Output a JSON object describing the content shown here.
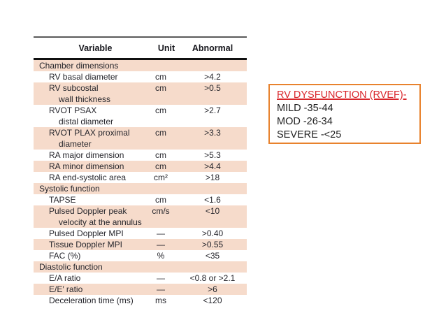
{
  "slide": {
    "background": "#ffffff"
  },
  "table": {
    "headers": [
      "Variable",
      "Unit",
      "Abnormal"
    ],
    "text_color": "#26262c",
    "stripe_color": "#f6dbcb",
    "rows": [
      {
        "label": "Chamber dimensions",
        "label2": "",
        "unit": "",
        "abnormal": "",
        "section": true,
        "shaded": true
      },
      {
        "label": "RV basal diameter",
        "label2": "",
        "unit": "cm",
        "abnormal": ">4.2",
        "section": false,
        "shaded": false
      },
      {
        "label": "RV subcostal",
        "label2": "wall thickness",
        "unit": "cm",
        "abnormal": ">0.5",
        "section": false,
        "shaded": true
      },
      {
        "label": "RVOT PSAX",
        "label2": "distal diameter",
        "unit": "cm",
        "abnormal": ">2.7",
        "section": false,
        "shaded": false
      },
      {
        "label": "RVOT PLAX proximal",
        "label2": "diameter",
        "unit": "cm",
        "abnormal": ">3.3",
        "section": false,
        "shaded": true
      },
      {
        "label": "RA major dimension",
        "label2": "",
        "unit": "cm",
        "abnormal": ">5.3",
        "section": false,
        "shaded": false
      },
      {
        "label": "RA minor dimension",
        "label2": "",
        "unit": "cm",
        "abnormal": ">4.4",
        "section": false,
        "shaded": true
      },
      {
        "label": "RA end-systolic area",
        "label2": "",
        "unit": "cm²",
        "abnormal": ">18",
        "section": false,
        "shaded": false
      },
      {
        "label": "Systolic function",
        "label2": "",
        "unit": "",
        "abnormal": "",
        "section": true,
        "shaded": true
      },
      {
        "label": "TAPSE",
        "label2": "",
        "unit": "cm",
        "abnormal": "<1.6",
        "section": false,
        "shaded": false
      },
      {
        "label": "Pulsed Doppler peak",
        "label2": "velocity at the annulus",
        "unit": "cm/s",
        "abnormal": "<10",
        "section": false,
        "shaded": true
      },
      {
        "label": "Pulsed Doppler MPI",
        "label2": "",
        "unit": "—",
        "abnormal": ">0.40",
        "section": false,
        "shaded": false
      },
      {
        "label": "Tissue Doppler MPI",
        "label2": "",
        "unit": "—",
        "abnormal": ">0.55",
        "section": false,
        "shaded": true
      },
      {
        "label": "FAC (%)",
        "label2": "",
        "unit": "%",
        "abnormal": "<35",
        "section": false,
        "shaded": false
      },
      {
        "label": "Diastolic function",
        "label2": "",
        "unit": "",
        "abnormal": "",
        "section": true,
        "shaded": true
      },
      {
        "label": "E/A ratio",
        "label2": "",
        "unit": "—",
        "abnormal": "<0.8 or >2.1",
        "section": false,
        "shaded": false
      },
      {
        "label": "E/E′ ratio",
        "label2": "",
        "unit": "—",
        "abnormal": ">6",
        "section": false,
        "shaded": true
      },
      {
        "label": "Deceleration time (ms)",
        "label2": "",
        "unit": "ms",
        "abnormal": "<120",
        "section": false,
        "shaded": false
      }
    ]
  },
  "note": {
    "title": "RV DYSFUNCTION (RVEF)-",
    "lines": [
      "MILD -35-44",
      "MOD -26-34",
      "SEVERE -<25"
    ],
    "border_color": "#e8822d",
    "title_color": "#d9262b",
    "text_color": "#1f1f1f"
  }
}
